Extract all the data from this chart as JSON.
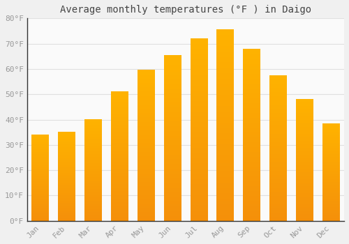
{
  "title": "Average monthly temperatures (°F ) in Daigo",
  "months": [
    "Jan",
    "Feb",
    "Mar",
    "Apr",
    "May",
    "Jun",
    "Jul",
    "Aug",
    "Sep",
    "Oct",
    "Nov",
    "Dec"
  ],
  "values": [
    34,
    35,
    40,
    51,
    59.5,
    65.5,
    72,
    75.5,
    68,
    57.5,
    48,
    38.5
  ],
  "bar_color_top": "#FFB300",
  "bar_color_bottom": "#F5900A",
  "background_color": "#F0F0F0",
  "plot_bg_color": "#FAFAFA",
  "ylim": [
    0,
    80
  ],
  "yticks": [
    0,
    10,
    20,
    30,
    40,
    50,
    60,
    70,
    80
  ],
  "grid_color": "#E0E0E0",
  "title_fontsize": 10,
  "tick_fontsize": 8,
  "tick_color": "#999999",
  "spine_color": "#333333"
}
